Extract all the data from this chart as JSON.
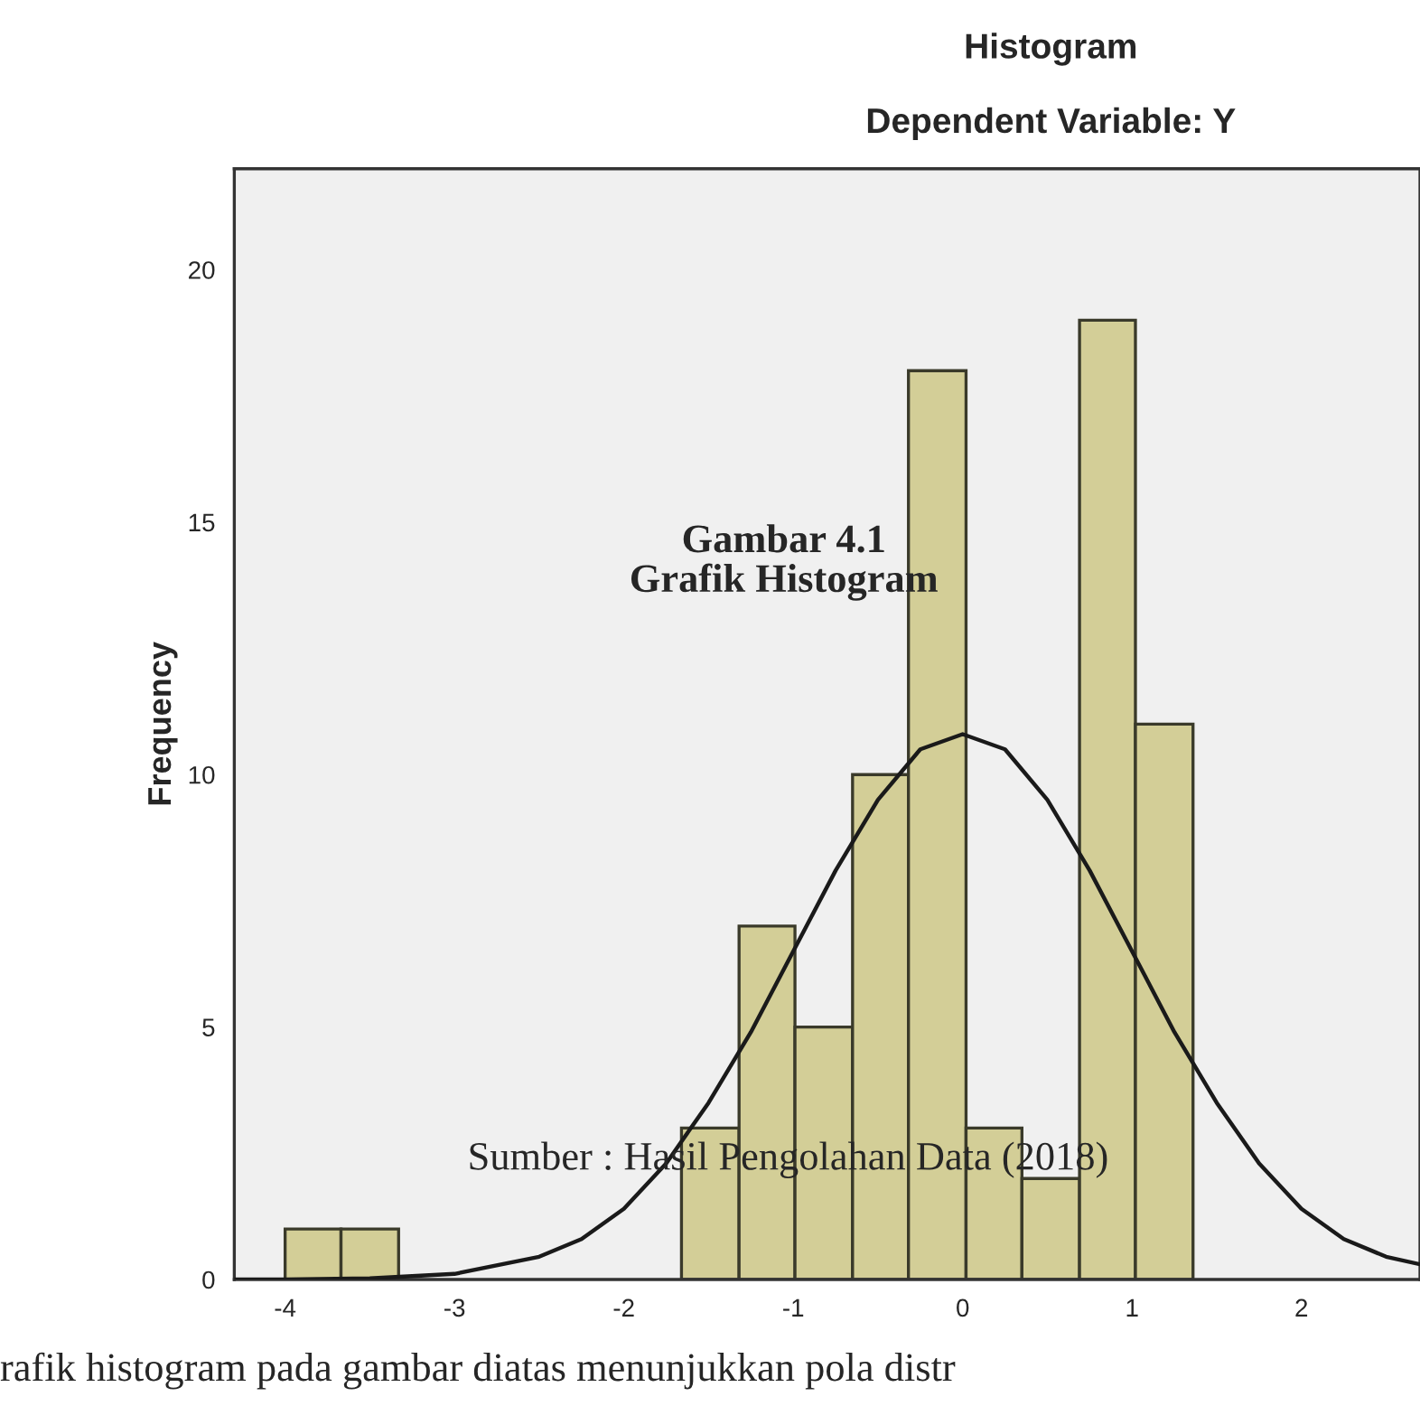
{
  "chart_data": {
    "type": "histogram",
    "title": "Histogram",
    "subtitle": "Dependent Variable: Y",
    "ylabel": "Frequency",
    "bins": [
      -4.0,
      -3.67,
      -3.33,
      -1.66,
      -1.32,
      -0.99,
      -0.65,
      -0.32,
      0.02,
      0.35,
      0.69,
      1.02,
      1.36
    ],
    "values": [
      1,
      1,
      0,
      3,
      7,
      5,
      10,
      18,
      3,
      2,
      19,
      11
    ],
    "color": "#d3ce97",
    "series": [
      {
        "type": "line",
        "color": "#1a1a1a",
        "x": [
          -4.3,
          -4.0,
          -3.5,
          -3.0,
          -2.5,
          -2.25,
          -2.0,
          -1.75,
          -1.5,
          -1.25,
          -1.0,
          -0.75,
          -0.5,
          -0.25,
          0.0,
          0.25,
          0.5,
          0.75,
          1.0,
          1.25,
          1.5,
          1.75,
          2.0,
          2.25,
          2.5,
          2.7
        ],
        "values": [
          0.0,
          0.0,
          0.02,
          0.11,
          0.45,
          0.8,
          1.4,
          2.3,
          3.5,
          4.9,
          6.5,
          8.1,
          9.5,
          10.5,
          10.8,
          10.5,
          9.5,
          8.1,
          6.5,
          4.9,
          3.5,
          2.3,
          1.4,
          0.8,
          0.45,
          0.3
        ]
      }
    ],
    "xlim": [
      -4.3,
      2.7
    ],
    "xticks": [
      -4,
      -3,
      -2,
      -1,
      0,
      1,
      2
    ],
    "ylim": [
      0,
      22
    ],
    "yticks": [
      0,
      5,
      10,
      15,
      20
    ],
    "grid": false,
    "legend": false,
    "annotations": [
      "Gambar 4.1\nGrafik Histogram",
      "Sumber : Hasil Pengolahan Data (2018)",
      "rafik histogram pada gambar diatas menunjukkan pola distr"
    ]
  }
}
